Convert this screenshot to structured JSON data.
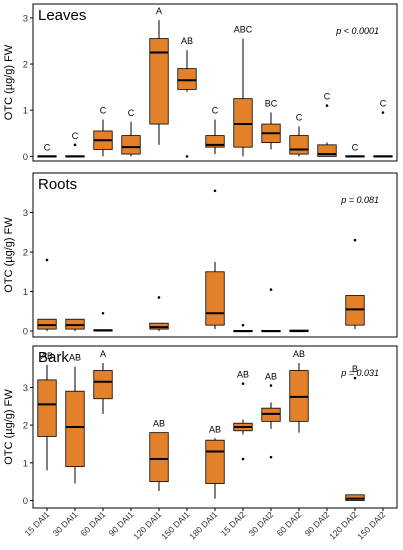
{
  "chart_data": {
    "type": "box",
    "shared_x_categories": [
      "15 DAI1",
      "30 DAI1",
      "60 DAI1",
      "90 DAI1",
      "120 DAI1",
      "150 DAI1",
      "180 DAI1",
      "15 DAI2",
      "30 DAI2",
      "60 DAI2",
      "90 DAI2",
      "120 DAI2",
      "150 DAI2"
    ],
    "ylabel": "OTC (µg/g) FW",
    "box_color": "#E3812B",
    "panels": [
      {
        "title": "Leaves",
        "pvalue": "p < 0.0001",
        "ylim": [
          -0.1,
          3.3
        ],
        "yticks": [
          0,
          1,
          2,
          3
        ],
        "boxes": [
          {
            "min": 0,
            "q1": 0,
            "median": 0,
            "q3": 0,
            "max": 0,
            "outliers": [],
            "letter": "C"
          },
          {
            "min": 0,
            "q1": 0,
            "median": 0,
            "q3": 0,
            "max": 0,
            "outliers": [
              0.25
            ],
            "letter": "C"
          },
          {
            "min": 0,
            "q1": 0.15,
            "median": 0.35,
            "q3": 0.55,
            "max": 0.8,
            "outliers": [],
            "letter": "C"
          },
          {
            "min": 0,
            "q1": 0.05,
            "median": 0.2,
            "q3": 0.45,
            "max": 0.75,
            "outliers": [],
            "letter": "C"
          },
          {
            "min": 0.25,
            "q1": 0.7,
            "median": 2.25,
            "q3": 2.55,
            "max": 2.95,
            "outliers": [],
            "letter": "A"
          },
          {
            "min": 1.4,
            "q1": 1.45,
            "median": 1.65,
            "q3": 1.9,
            "max": 2.3,
            "outliers": [
              0
            ],
            "letter": "AB"
          },
          {
            "min": 0.05,
            "q1": 0.2,
            "median": 0.25,
            "q3": 0.45,
            "max": 0.8,
            "outliers": [],
            "letter": "C"
          },
          {
            "min": 0,
            "q1": 0.2,
            "median": 0.7,
            "q3": 1.25,
            "max": 2.55,
            "outliers": [],
            "letter": "ABC"
          },
          {
            "min": 0.15,
            "q1": 0.3,
            "median": 0.5,
            "q3": 0.7,
            "max": 0.95,
            "outliers": [],
            "letter": "BC"
          },
          {
            "min": 0,
            "q1": 0.05,
            "median": 0.15,
            "q3": 0.45,
            "max": 0.65,
            "outliers": [],
            "letter": "C"
          },
          {
            "min": 0,
            "q1": 0,
            "median": 0.05,
            "q3": 0.25,
            "max": 0.3,
            "outliers": [
              1.1
            ],
            "letter": "C"
          },
          {
            "min": 0,
            "q1": 0,
            "median": 0,
            "q3": 0,
            "max": 0,
            "outliers": [],
            "letter": "C"
          },
          {
            "min": 0,
            "q1": 0,
            "median": 0,
            "q3": 0,
            "max": 0,
            "outliers": [
              0.95
            ],
            "letter": "C"
          }
        ]
      },
      {
        "title": "Roots",
        "pvalue": "p = 0.081",
        "ylim": [
          -0.15,
          4.0
        ],
        "yticks": [
          0,
          1,
          2,
          3
        ],
        "boxes": [
          {
            "min": 0,
            "q1": 0.05,
            "median": 0.15,
            "q3": 0.3,
            "max": 0.3,
            "outliers": [
              1.8
            ],
            "letter": ""
          },
          {
            "min": 0,
            "q1": 0.05,
            "median": 0.15,
            "q3": 0.3,
            "max": 0.3,
            "outliers": [],
            "letter": ""
          },
          {
            "min": 0,
            "q1": 0,
            "median": 0.02,
            "q3": 0.03,
            "max": 0.03,
            "outliers": [
              0.45
            ],
            "letter": ""
          },
          null,
          {
            "min": 0,
            "q1": 0.05,
            "median": 0.1,
            "q3": 0.2,
            "max": 0.2,
            "outliers": [
              0.85
            ],
            "letter": ""
          },
          null,
          {
            "min": 0.05,
            "q1": 0.15,
            "median": 0.45,
            "q3": 1.5,
            "max": 1.75,
            "outliers": [
              3.55
            ],
            "letter": ""
          },
          {
            "min": 0,
            "q1": 0,
            "median": 0,
            "q3": 0,
            "max": 0,
            "outliers": [
              0.15
            ],
            "letter": ""
          },
          {
            "min": 0,
            "q1": 0,
            "median": 0,
            "q3": 0,
            "max": 0,
            "outliers": [
              1.05
            ],
            "letter": ""
          },
          {
            "min": 0,
            "q1": 0,
            "median": 0,
            "q3": 0.02,
            "max": 0.03,
            "outliers": [],
            "letter": ""
          },
          null,
          {
            "min": 0.05,
            "q1": 0.15,
            "median": 0.55,
            "q3": 0.9,
            "max": 0.9,
            "outliers": [
              2.3
            ],
            "letter": ""
          },
          null
        ]
      },
      {
        "title": "Bark",
        "pvalue": "p = 0.031",
        "ylim": [
          -0.2,
          4.1
        ],
        "yticks": [
          0,
          1,
          2,
          3
        ],
        "boxes": [
          {
            "min": 0.8,
            "q1": 1.7,
            "median": 2.55,
            "q3": 3.2,
            "max": 3.6,
            "outliers": [],
            "letter": "AB"
          },
          {
            "min": 0.45,
            "q1": 0.9,
            "median": 1.95,
            "q3": 2.9,
            "max": 3.55,
            "outliers": [],
            "letter": "AB"
          },
          {
            "min": 2.3,
            "q1": 2.7,
            "median": 3.15,
            "q3": 3.45,
            "max": 3.65,
            "outliers": [],
            "letter": "A"
          },
          null,
          {
            "min": 0.25,
            "q1": 0.5,
            "median": 1.1,
            "q3": 1.8,
            "max": 1.8,
            "outliers": [],
            "letter": "AB"
          },
          null,
          {
            "min": 0.05,
            "q1": 0.45,
            "median": 1.3,
            "q3": 1.6,
            "max": 1.65,
            "outliers": [],
            "letter": "AB"
          },
          {
            "min": 1.75,
            "q1": 1.85,
            "median": 1.95,
            "q3": 2.05,
            "max": 2.15,
            "outliers": [
              3.1,
              1.1
            ],
            "letter": "AB"
          },
          {
            "min": 1.9,
            "q1": 2.1,
            "median": 2.3,
            "q3": 2.45,
            "max": 2.6,
            "outliers": [
              3.05,
              1.15
            ],
            "letter": "AB"
          },
          {
            "min": 1.8,
            "q1": 2.1,
            "median": 2.75,
            "q3": 3.45,
            "max": 3.65,
            "outliers": [],
            "letter": "AB"
          },
          null,
          {
            "min": 0,
            "q1": 0,
            "median": 0.05,
            "q3": 0.15,
            "max": 0.15,
            "outliers": [
              3.25
            ],
            "letter": "B"
          },
          null
        ]
      }
    ]
  }
}
